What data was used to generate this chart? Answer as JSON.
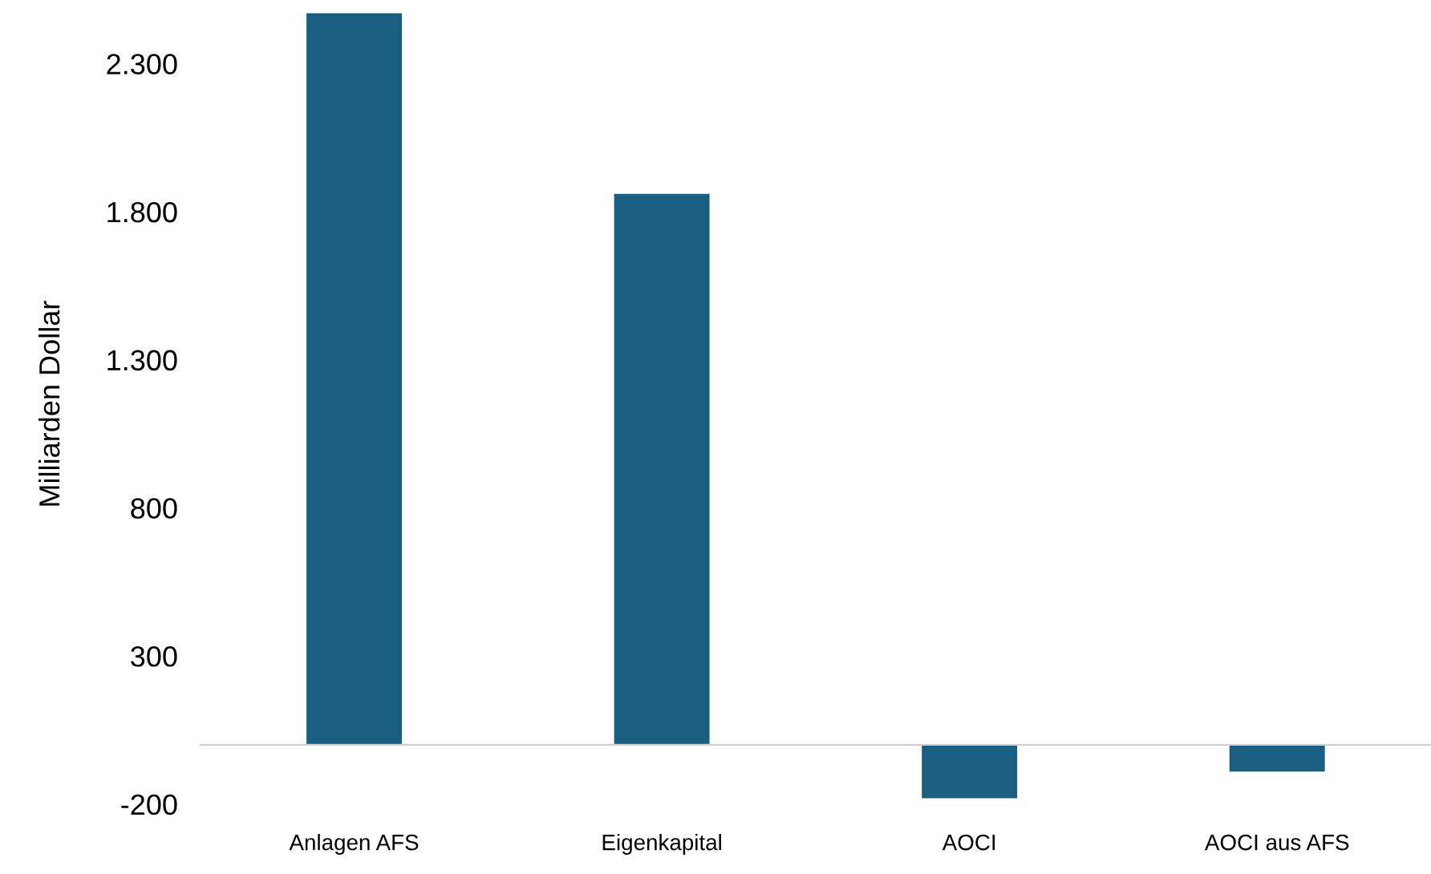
{
  "chart_data": {
    "type": "bar",
    "ylabel": "Milliarden Dollar",
    "categories": [
      "Anlagen AFS",
      "Eigenkapital",
      "AOCI",
      "AOCI aus AFS"
    ],
    "values": [
      2470,
      1860,
      -180,
      -90
    ],
    "color": "#1a5f82",
    "ylim": [
      -200,
      2500
    ],
    "yticks": [
      {
        "value": -200,
        "label": "-200"
      },
      300,
      800,
      {
        "value": 1300,
        "label": "1.300"
      },
      {
        "value": 1800,
        "label": "1.800"
      },
      {
        "value": 2300,
        "label": "2.300"
      }
    ],
    "grid": false
  }
}
